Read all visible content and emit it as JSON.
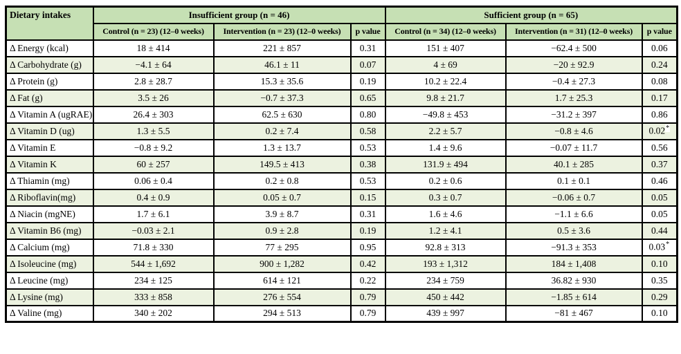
{
  "colors": {
    "header_bg": "#c6e0b4",
    "row_alt_bg": "#ecf2e0",
    "border": "#000000"
  },
  "table": {
    "corner_header": "Dietary intakes",
    "groups": [
      {
        "label": "Insufficient group (n = 46)",
        "columns": [
          "Control (n = 23) (12–0 weeks)",
          "Intervention (n = 23) (12–0 weeks)",
          "p value"
        ]
      },
      {
        "label": "Sufficient group (n = 65)",
        "columns": [
          "Control (n = 34) (12–0 weeks)",
          "Intervention (n = 31) (12–0 weeks)",
          "p value"
        ]
      }
    ],
    "rows": [
      {
        "label": "Δ Energy (kcal)",
        "cells": [
          "18 ± 414",
          "221 ± 857",
          "0.31",
          "151 ± 407",
          "−62.4 ± 500",
          "0.06"
        ]
      },
      {
        "label": "Δ Carbohydrate (g)",
        "cells": [
          "−4.1 ± 64",
          "46.1 ± 11",
          "0.07",
          "4 ± 69",
          "−20 ± 92.9",
          "0.24"
        ]
      },
      {
        "label": "Δ Protein (g)",
        "cells": [
          "2.8 ± 28.7",
          "15.3 ± 35.6",
          "0.19",
          "10.2 ± 22.4",
          "−0.4 ± 27.3",
          "0.08"
        ]
      },
      {
        "label": "Δ Fat (g)",
        "cells": [
          "3.5 ± 26",
          "−0.7 ± 37.3",
          "0.65",
          "9.8 ± 21.7",
          "1.7 ± 25.3",
          "0.17"
        ]
      },
      {
        "label": "Δ Vitamin A (ugRAE)",
        "cells": [
          "26.4 ± 303",
          "62.5 ± 630",
          "0.80",
          "−49.8 ± 453",
          "−31.2 ± 397",
          "0.86"
        ]
      },
      {
        "label": "Δ Vitamin D (ug)",
        "cells": [
          "1.3 ± 5.5",
          "0.2 ± 7.4",
          "0.58",
          "2.2 ± 5.7",
          "−0.8 ± 4.6",
          "0.02*"
        ]
      },
      {
        "label": "Δ Vitamin E",
        "cells": [
          "−0.8 ± 9.2",
          "1.3 ± 13.7",
          "0.53",
          "1.4 ± 9.6",
          "−0.07 ± 11.7",
          "0.56"
        ]
      },
      {
        "label": "Δ Vitamin K",
        "cells": [
          "60 ± 257",
          "149.5 ± 413",
          "0.38",
          "131.9 ± 494",
          "40.1 ± 285",
          "0.37"
        ]
      },
      {
        "label": "Δ Thiamin (mg)",
        "cells": [
          "0.06 ± 0.4",
          "0.2 ± 0.8",
          "0.53",
          "0.2 ± 0.6",
          "0.1 ± 0.1",
          "0.46"
        ]
      },
      {
        "label": "Δ Riboflavin(mg)",
        "cells": [
          "0.4 ± 0.9",
          "0.05 ± 0.7",
          "0.15",
          "0.3 ± 0.7",
          "−0.06 ± 0.7",
          "0.05"
        ]
      },
      {
        "label": "Δ Niacin (mgNE)",
        "cells": [
          "1.7 ± 6.1",
          "3.9 ± 8.7",
          "0.31",
          "1.6 ± 4.6",
          "−1.1 ± 6.6",
          "0.05"
        ]
      },
      {
        "label": "Δ Vitamin B6 (mg)",
        "cells": [
          "−0.03 ± 2.1",
          "0.9 ± 2.8",
          "0.19",
          "1.2 ± 4.1",
          "0.5 ± 3.6",
          "0.44"
        ]
      },
      {
        "label": "Δ Calcium (mg)",
        "cells": [
          "71.8 ± 330",
          "77 ± 295",
          "0.95",
          "92.8 ± 313",
          "−91.3 ± 353",
          "0.03*"
        ]
      },
      {
        "label": "Δ Isoleucine (mg)",
        "cells": [
          "544 ± 1,692",
          "900 ± 1,282",
          "0.42",
          "193 ± 1,312",
          "184 ± 1,408",
          "0.10"
        ]
      },
      {
        "label": "Δ Leucine (mg)",
        "cells": [
          "234 ± 125",
          "614 ± 121",
          "0.22",
          "234 ± 759",
          "36.82 ± 930",
          "0.35"
        ]
      },
      {
        "label": "Δ Lysine (mg)",
        "cells": [
          "333 ± 858",
          "276 ± 554",
          "0.79",
          "450 ± 442",
          "−1.85 ± 614",
          "0.29"
        ]
      },
      {
        "label": "Δ Valine (mg)",
        "cells": [
          "340 ± 202",
          "294 ± 513",
          "0.79",
          "439 ± 997",
          "−81 ± 467",
          "0.10"
        ]
      }
    ]
  }
}
